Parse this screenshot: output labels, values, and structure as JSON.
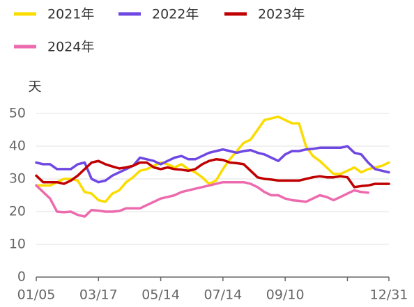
{
  "chart_data": {
    "type": "line",
    "y_axis_label": "天",
    "categories": [
      "01/05",
      null,
      null,
      null,
      null,
      null,
      null,
      null,
      null,
      "03/17",
      null,
      null,
      null,
      null,
      null,
      null,
      null,
      null,
      "05/14",
      null,
      null,
      null,
      null,
      null,
      null,
      null,
      null,
      "07/14",
      null,
      null,
      null,
      null,
      null,
      null,
      null,
      null,
      "09/10",
      null,
      null,
      null,
      null,
      null,
      null,
      null,
      null,
      null,
      null,
      null,
      null,
      null,
      null,
      "12/31"
    ],
    "series": [
      {
        "name": "2021年",
        "color": "#fadc00",
        "values": [
          28,
          28,
          28,
          29,
          30,
          30,
          29.5,
          26,
          25.5,
          23.5,
          23,
          25.5,
          26.5,
          29,
          30.5,
          32.5,
          33,
          34,
          35,
          34.5,
          33.5,
          34.5,
          33,
          32,
          30.5,
          28.5,
          29.5,
          33,
          36,
          38.5,
          41,
          42,
          45,
          48,
          48.5,
          49,
          48,
          47,
          47,
          40,
          37,
          35.5,
          33.5,
          31.5,
          31.5,
          32.5,
          33.5,
          32,
          33,
          33.5,
          34,
          35
        ]
      },
      {
        "name": "2022年",
        "color": "#6f47e3",
        "values": [
          35,
          34.5,
          34.5,
          33,
          33,
          33,
          34.5,
          35,
          30,
          29,
          29.5,
          31,
          32,
          33,
          34,
          36.5,
          36,
          35.5,
          34.5,
          35.5,
          36.5,
          37,
          36,
          36,
          37,
          38,
          38.5,
          39,
          38.5,
          38,
          38.5,
          38.8,
          38,
          37.5,
          36.5,
          35.5,
          37.5,
          38.5,
          38.5,
          39,
          39.2,
          39.5,
          39.5,
          39.5,
          39.5,
          40,
          38,
          37.5,
          35,
          33,
          32.5,
          32
        ]
      },
      {
        "name": "2023年",
        "color": "#c00000",
        "values": [
          31,
          29,
          29,
          29,
          28.5,
          29.5,
          31,
          33,
          35,
          35.5,
          34.5,
          33.8,
          33.2,
          33.5,
          34,
          35,
          35,
          33.5,
          33,
          33.5,
          33,
          32.8,
          32.5,
          33,
          34.5,
          35.5,
          36,
          35.8,
          35,
          34.8,
          34.5,
          32.5,
          30.5,
          30,
          29.8,
          29.5,
          29.5,
          29.5,
          29.5,
          30,
          30.5,
          30.8,
          30.5,
          30.5,
          30.8,
          30.5,
          27.5,
          27.8,
          28,
          28.5,
          28.5,
          28.5
        ]
      },
      {
        "name": "2024年",
        "color": "#ec6aad",
        "values": [
          28,
          26,
          24,
          20,
          19.8,
          20,
          19,
          18.5,
          20.5,
          20.3,
          20,
          20,
          20.2,
          21,
          21,
          21,
          22,
          23,
          24,
          24.5,
          25,
          26,
          26.5,
          27,
          27.5,
          28,
          28.5,
          29,
          29,
          29,
          29,
          28.5,
          27.5,
          26,
          25,
          25,
          24,
          23.5,
          23.3,
          23,
          24,
          25,
          24.5,
          23.5,
          24.5,
          25.5,
          26.5,
          26,
          25.8,
          null,
          null,
          null
        ]
      }
    ],
    "ylim": [
      0,
      50
    ],
    "yticks": [
      0,
      10,
      20,
      30,
      40,
      50
    ],
    "grid": true,
    "legend": "top-left"
  }
}
